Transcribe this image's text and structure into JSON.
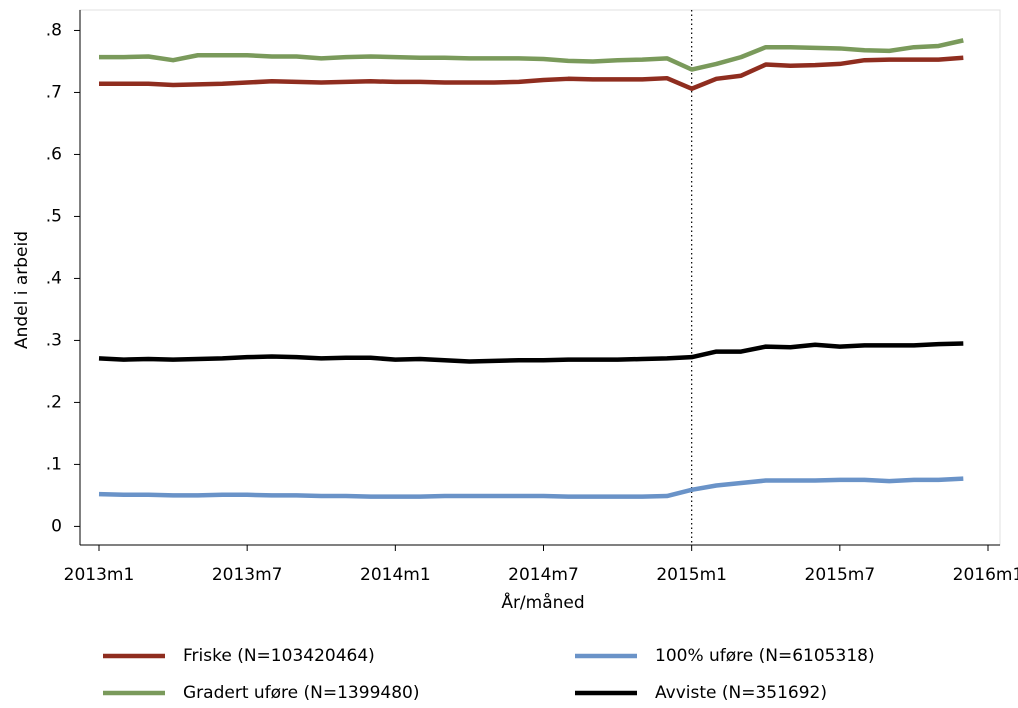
{
  "chart_data": {
    "type": "line",
    "y_label": "Andel i arbeid",
    "x_label": "År/måned",
    "categories": [
      "2013m1",
      null,
      null,
      null,
      null,
      null,
      "2013m7",
      null,
      null,
      null,
      null,
      null,
      "2014m1",
      null,
      null,
      null,
      null,
      null,
      "2014m7",
      null,
      null,
      null,
      null,
      null,
      "2015m1",
      null,
      null,
      null,
      null,
      null,
      "2015m7",
      null,
      null,
      null,
      null,
      null,
      "2016m1"
    ],
    "vline": "2015m1",
    "ylim": [
      -0.03,
      0.833
    ],
    "yticks": [
      0,
      {
        "value": 0.1,
        "label": ".1"
      },
      {
        "value": 0.2,
        "label": ".2"
      },
      {
        "value": 0.3,
        "label": ".3"
      },
      {
        "value": 0.4,
        "label": ".4"
      },
      {
        "value": 0.5,
        "label": ".5"
      },
      {
        "value": 0.6,
        "label": ".6"
      },
      {
        "value": 0.7,
        "label": ".7"
      },
      {
        "value": 0.8,
        "label": ".8"
      }
    ],
    "series": [
      {
        "name": "Friske (N=103420464)",
        "color": "#8f2d1f",
        "values": [
          0.714,
          0.714,
          0.714,
          0.712,
          0.713,
          0.714,
          0.716,
          0.718,
          0.717,
          0.716,
          0.717,
          0.718,
          0.717,
          0.717,
          0.716,
          0.716,
          0.716,
          0.717,
          0.72,
          0.722,
          0.721,
          0.721,
          0.721,
          0.723,
          0.706,
          0.722,
          0.727,
          0.745,
          0.743,
          0.744,
          0.746,
          0.752,
          0.753,
          0.753,
          0.753,
          0.756,
          null
        ]
      },
      {
        "name": "100% uføre (N=6105318)",
        "color": "#6a93c8",
        "values": [
          0.052,
          0.051,
          0.051,
          0.05,
          0.05,
          0.051,
          0.051,
          0.05,
          0.05,
          0.049,
          0.049,
          0.048,
          0.048,
          0.048,
          0.049,
          0.049,
          0.049,
          0.049,
          0.049,
          0.048,
          0.048,
          0.048,
          0.048,
          0.049,
          0.059,
          0.066,
          0.07,
          0.074,
          0.074,
          0.074,
          0.075,
          0.075,
          0.073,
          0.075,
          0.075,
          0.077,
          null
        ]
      },
      {
        "name": "Gradert uføre (N=1399480)",
        "color": "#7a9a5b",
        "values": [
          0.757,
          0.757,
          0.758,
          0.752,
          0.76,
          0.76,
          0.76,
          0.758,
          0.758,
          0.755,
          0.757,
          0.758,
          0.757,
          0.756,
          0.756,
          0.755,
          0.755,
          0.755,
          0.754,
          0.751,
          0.75,
          0.752,
          0.753,
          0.755,
          0.737,
          0.746,
          0.757,
          0.773,
          0.773,
          0.772,
          0.771,
          0.768,
          0.767,
          0.773,
          0.775,
          0.784,
          null
        ]
      },
      {
        "name": "Avviste (N=351692)",
        "color": "#000000",
        "values": [
          0.271,
          0.269,
          0.27,
          0.269,
          0.27,
          0.271,
          0.273,
          0.274,
          0.273,
          0.271,
          0.272,
          0.272,
          0.269,
          0.27,
          0.268,
          0.266,
          0.267,
          0.268,
          0.268,
          0.269,
          0.269,
          0.269,
          0.27,
          0.271,
          0.273,
          0.282,
          0.282,
          0.29,
          0.289,
          0.293,
          0.29,
          0.292,
          0.292,
          0.292,
          0.294,
          0.295,
          null
        ]
      }
    ]
  }
}
